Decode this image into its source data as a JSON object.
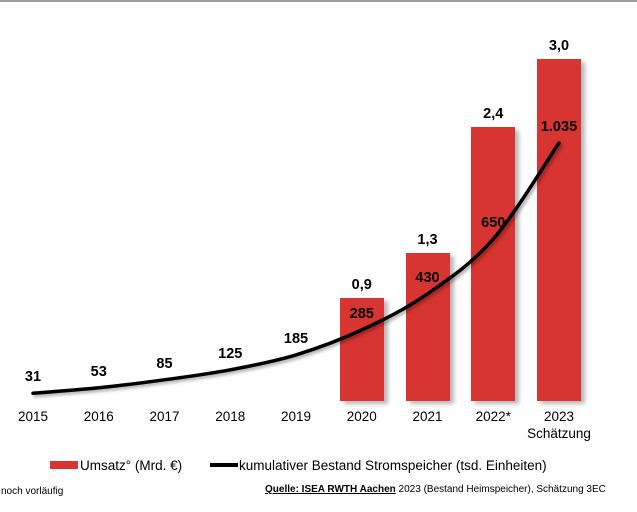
{
  "chart_data": {
    "type": "bar",
    "combo": "bar+line",
    "categories": [
      "2015",
      "2016",
      "2017",
      "2018",
      "2019",
      "2020",
      "2021",
      "2022*",
      "2023"
    ],
    "x_sublabels": [
      "",
      "",
      "",
      "",
      "",
      "",
      "",
      "",
      "Schätzung"
    ],
    "series": [
      {
        "name": "Umsatz° (Mrd. €)",
        "type": "bar",
        "color": "#d83432",
        "values": [
          null,
          null,
          null,
          null,
          null,
          0.9,
          1.3,
          2.4,
          3.0
        ],
        "labels": [
          "",
          "",
          "",
          "",
          "",
          "0,9",
          "1,3",
          "2,4",
          "3,0"
        ]
      },
      {
        "name": "kumulativer Bestand Stromspeicher (tsd. Einheiten)",
        "type": "line",
        "color": "#000000",
        "values": [
          31,
          53,
          85,
          125,
          185,
          285,
          430,
          650,
          1035
        ],
        "labels": [
          "31",
          "53",
          "85",
          "125",
          "185",
          "285",
          "430",
          "650",
          "1.035"
        ]
      }
    ],
    "title": "",
    "xlabel": "",
    "ylabel": "",
    "ylim_bar": [
      0,
      3.5
    ],
    "ylim_line": [
      0,
      1600
    ],
    "grid": false,
    "legend_position": "bottom",
    "axis_color": "#9b9b9b"
  },
  "footer": {
    "footnote": "noch vorläufig",
    "source_link": "Quelle: ISEA RWTH Aachen",
    "source_rest": " 2023 (Bestand Heimspeicher), Schätzung 3EC"
  }
}
